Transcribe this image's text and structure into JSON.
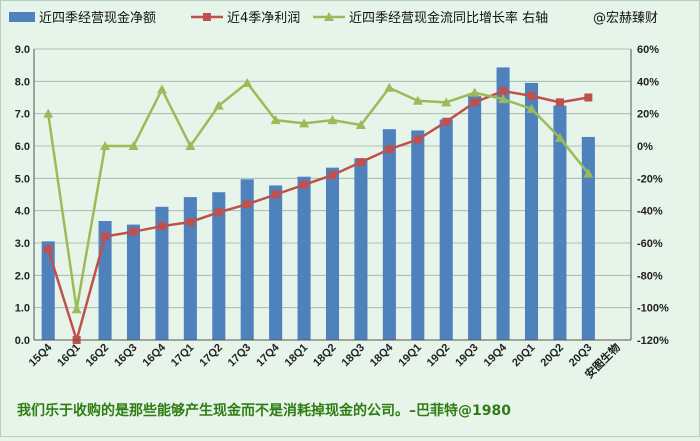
{
  "colors": {
    "background": "#e6f4ea",
    "bar": "#4f81bd",
    "profit_line": "#c0504d",
    "growth_line": "#9bbb59",
    "quote": "#2e7d12"
  },
  "legend": {
    "items": [
      {
        "label": "近四季经营现金净额",
        "marker": "bar"
      },
      {
        "label": "近4季净利润",
        "marker": "line-square"
      },
      {
        "label": "近四季经营现金流同比增长率 右轴",
        "marker": "line-triangle"
      }
    ],
    "watermark": "@宏赫臻财"
  },
  "footer": {
    "quote": "我们乐于收购的是那些能够产生现金而不是消耗掉现金的公司。–巴菲特@1980"
  },
  "chart_data": {
    "type": "bar",
    "categories": [
      "15Q4",
      "16Q1",
      "16Q2",
      "16Q3",
      "16Q4",
      "17Q1",
      "17Q2",
      "17Q3",
      "17Q4",
      "18Q1",
      "18Q2",
      "18Q3",
      "18Q4",
      "19Q1",
      "19Q2",
      "19Q3",
      "19Q4",
      "20Q1",
      "20Q2",
      "20Q3",
      "安图生物"
    ],
    "series": [
      {
        "name": "近四季经营现金净额",
        "type": "bar",
        "axis": "left",
        "values": [
          3.05,
          null,
          3.68,
          3.57,
          4.12,
          4.42,
          4.57,
          4.97,
          4.78,
          5.05,
          5.33,
          5.62,
          6.52,
          6.48,
          6.82,
          7.55,
          8.43,
          7.95,
          7.25,
          6.28,
          null
        ]
      },
      {
        "name": "近4季净利润",
        "type": "line",
        "axis": "left",
        "values": [
          2.8,
          0.0,
          3.2,
          3.35,
          3.52,
          3.65,
          3.95,
          4.2,
          4.5,
          4.8,
          5.1,
          5.5,
          5.9,
          6.2,
          6.75,
          7.35,
          7.7,
          7.55,
          7.35,
          7.5,
          null
        ]
      },
      {
        "name": "近四季经营现金流同比增长率 右轴",
        "type": "line",
        "axis": "right",
        "values": [
          20,
          -101,
          0,
          0,
          35,
          0,
          25,
          39,
          16,
          14,
          16,
          13,
          36,
          28,
          27,
          33,
          29,
          23,
          5,
          -17,
          null
        ]
      }
    ],
    "y_left": {
      "min": 0,
      "max": 9,
      "step": 1,
      "ticks": [
        "0.0",
        "1.0",
        "2.0",
        "3.0",
        "4.0",
        "5.0",
        "6.0",
        "7.0",
        "8.0",
        "9.0"
      ]
    },
    "y_right": {
      "min": -120,
      "max": 60,
      "step": 20,
      "ticks": [
        "-120%",
        "-100%",
        "-80%",
        "-60%",
        "-40%",
        "-20%",
        "0%",
        "20%",
        "40%",
        "60%"
      ]
    },
    "grid": true,
    "legend_position": "top"
  }
}
